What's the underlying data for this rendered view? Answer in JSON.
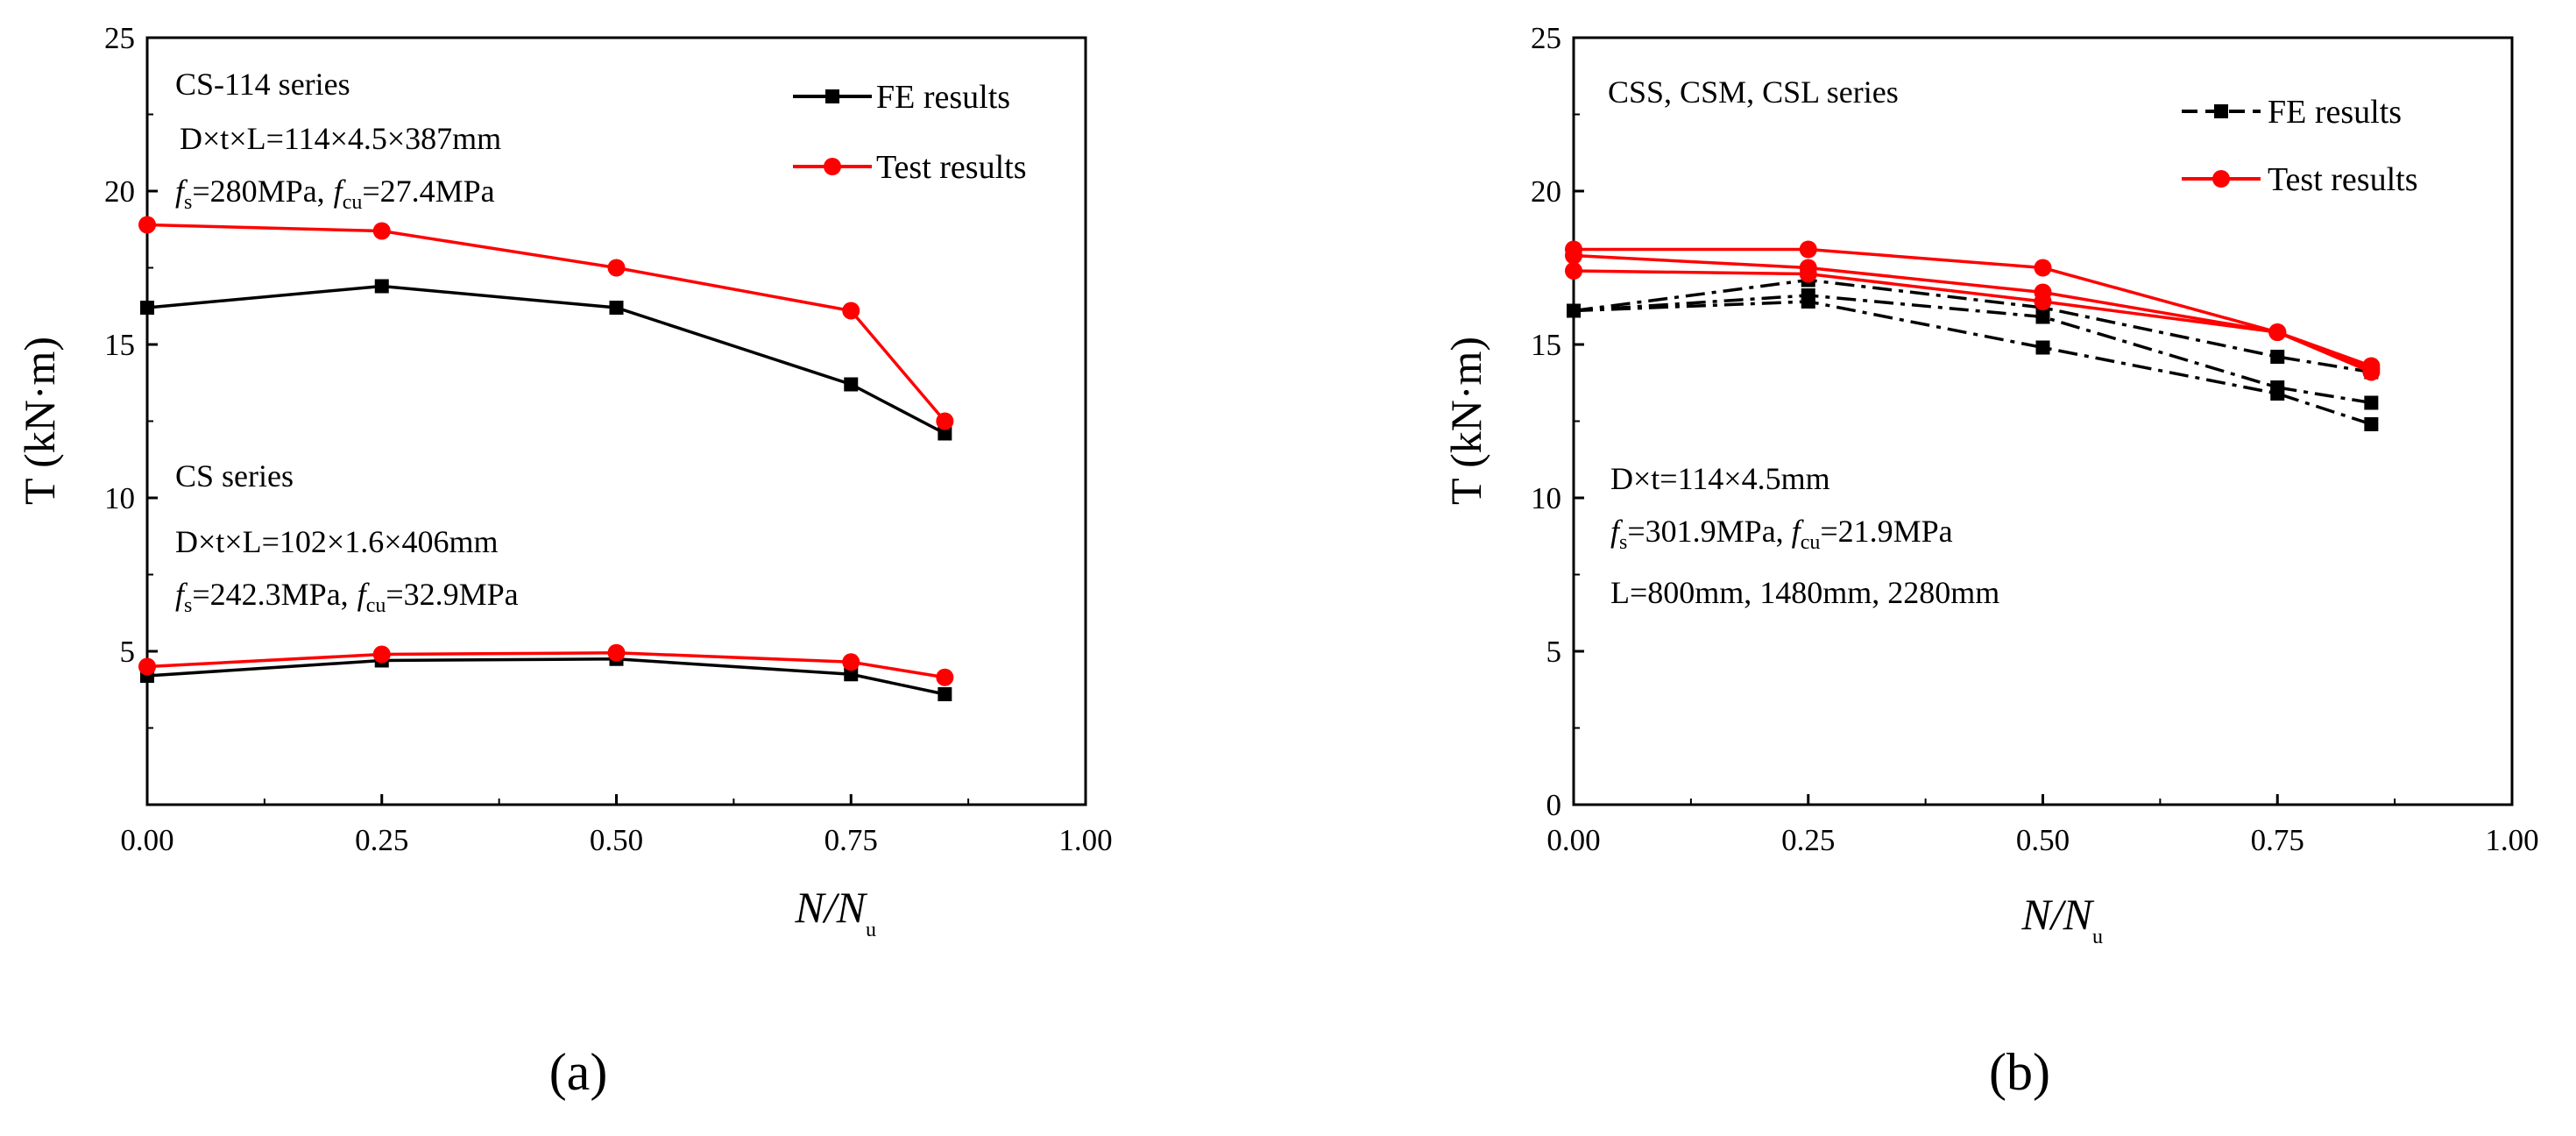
{
  "colors": {
    "fe": "#000000",
    "test": "#ff0000",
    "axis": "#000000"
  },
  "chart_data": [
    {
      "type": "line",
      "panel_label": "(a)",
      "xlim": [
        0,
        1
      ],
      "ylim": [
        0,
        25
      ],
      "xticks": [
        "0.00",
        "0.25",
        "0.50",
        "0.75",
        "1.00"
      ],
      "yticks": [
        "5",
        "10",
        "15",
        "20",
        "25"
      ],
      "xlabel": {
        "main": "N/N",
        "sub": "u"
      },
      "ylabel": "T (kN·m)",
      "legend": {
        "fe": "FE results",
        "test": "Test results"
      },
      "annotations": {
        "group1": {
          "title": "CS-114 series",
          "dims": "D×t×L=114×4.5×387mm",
          "props": {
            "fs_sym": "f",
            "fs_sub": "s",
            "fs_val": "=280MPa,",
            "fcu_sym": "f",
            "fcu_sub": "cu",
            "fcu_val": "=27.4MPa"
          }
        },
        "group2": {
          "title": "CS series",
          "dims": "D×t×L=102×1.6×406mm",
          "props": {
            "fs_sym": "f",
            "fs_sub": "s",
            "fs_val": "=242.3MPa,",
            "fcu_sym": "f",
            "fcu_sub": "cu",
            "fcu_val": "=32.9MPa"
          }
        }
      },
      "x": [
        0,
        0.25,
        0.5,
        0.75,
        0.85
      ],
      "series": [
        {
          "name": "CS-114 FE results",
          "kind": "fe",
          "values": [
            16.2,
            16.9,
            16.2,
            13.7,
            12.1
          ]
        },
        {
          "name": "CS-114 Test results",
          "kind": "test",
          "values": [
            18.9,
            18.7,
            17.5,
            16.1,
            12.5
          ]
        },
        {
          "name": "CS FE results",
          "kind": "fe",
          "values": [
            4.2,
            4.7,
            4.75,
            4.25,
            3.6
          ]
        },
        {
          "name": "CS Test results",
          "kind": "test",
          "values": [
            4.5,
            4.9,
            4.95,
            4.65,
            4.15
          ]
        }
      ]
    },
    {
      "type": "line",
      "panel_label": "(b)",
      "xlim": [
        0,
        1
      ],
      "ylim": [
        0,
        25
      ],
      "xticks": [
        "0.00",
        "0.25",
        "0.50",
        "0.75",
        "1.00"
      ],
      "yticks": [
        "0",
        "5",
        "10",
        "15",
        "20",
        "25"
      ],
      "xlabel": {
        "main": "N/N",
        "sub": "u"
      },
      "ylabel": "T (kN·m)",
      "legend": {
        "fe": "FE results",
        "test": "Test results"
      },
      "annotations": {
        "title": "CSS, CSM, CSL series",
        "dims": "D×t=114×4.5mm",
        "props": {
          "fs_sym": "f",
          "fs_sub": "s",
          "fs_val": "=301.9MPa, ",
          "fcu_sym": "f",
          "fcu_sub": "cu",
          "fcu_val": "=21.9MPa"
        },
        "lengths": "L=800mm, 1480mm, 2280mm"
      },
      "x": [
        0,
        0.25,
        0.5,
        0.75,
        0.85
      ],
      "series": [
        {
          "name": "CSS FE results",
          "kind": "fe",
          "values": [
            16.1,
            17.1,
            16.2,
            14.6,
            14.1
          ]
        },
        {
          "name": "CSM FE results",
          "kind": "fe",
          "values": [
            16.1,
            16.6,
            15.9,
            13.6,
            13.1
          ]
        },
        {
          "name": "CSL FE results",
          "kind": "fe",
          "values": [
            16.1,
            16.4,
            14.9,
            13.4,
            12.4
          ]
        },
        {
          "name": "CSS Test results",
          "kind": "test",
          "values": [
            18.1,
            18.1,
            17.5,
            15.4,
            14.3
          ]
        },
        {
          "name": "CSM Test results",
          "kind": "test",
          "values": [
            17.9,
            17.5,
            16.7,
            15.4,
            14.2
          ]
        },
        {
          "name": "CSL Test results",
          "kind": "test",
          "values": [
            17.4,
            17.3,
            16.4,
            15.4,
            14.1
          ]
        }
      ]
    }
  ]
}
